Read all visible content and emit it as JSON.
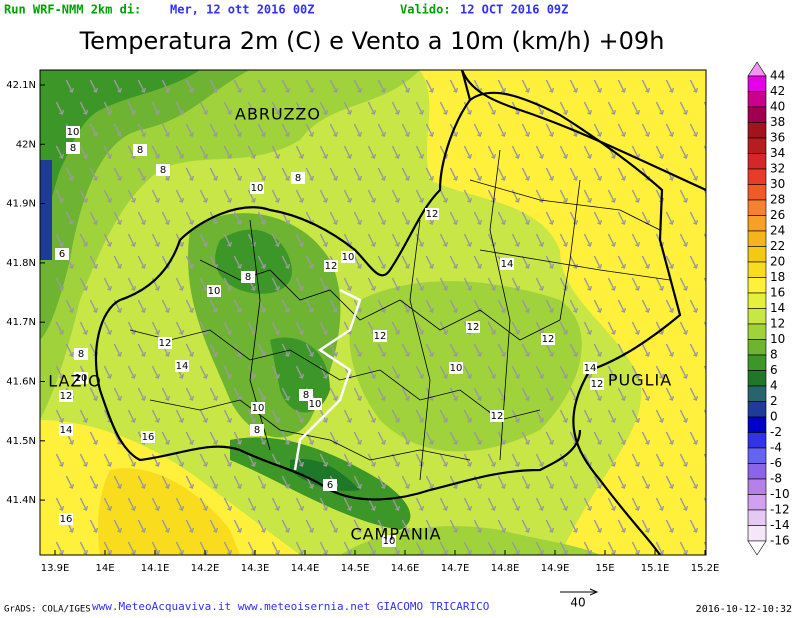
{
  "header": {
    "run_label": "Run WRF-NMM 2km di:",
    "run_date": "Mer, 12 ott 2016 00Z",
    "valid_label": "Valido:",
    "valid_date": "12 OCT 2016 09Z"
  },
  "title": "Temperatura 2m (C) e Vento a 10m (km/h) +09h",
  "lat_ticks": [
    "42.1N",
    "42N",
    "41.9N",
    "41.8N",
    "41.7N",
    "41.6N",
    "41.5N",
    "41.4N"
  ],
  "lon_ticks": [
    "13.9E",
    "14E",
    "14.1E",
    "14.2E",
    "14.3E",
    "14.4E",
    "14.5E",
    "14.6E",
    "14.7E",
    "14.8E",
    "14.9E",
    "15E",
    "15.1E",
    "15.2E"
  ],
  "regions": [
    "ABRUZZO",
    "LAZIO",
    "PUGLIA",
    "CAMPANIA"
  ],
  "contour_labels": [
    10,
    8,
    8,
    8,
    10,
    8,
    6,
    8,
    10,
    10,
    12,
    12,
    14,
    12,
    12,
    12,
    12,
    14,
    8,
    10,
    12,
    8,
    10,
    10,
    10,
    12,
    8,
    16,
    14,
    6,
    14,
    12,
    16,
    10
  ],
  "colorbar": {
    "labels": [
      44,
      42,
      40,
      38,
      36,
      34,
      32,
      30,
      28,
      26,
      24,
      22,
      20,
      18,
      16,
      14,
      12,
      10,
      8,
      6,
      4,
      2,
      0,
      -2,
      -4,
      -6,
      -8,
      -10,
      -12,
      -14,
      -16
    ],
    "colors": [
      "#f096f0",
      "#e600e6",
      "#c8008c",
      "#a00050",
      "#a0141e",
      "#b41e1e",
      "#d22828",
      "#e63c28",
      "#f05a28",
      "#f58232",
      "#f5a028",
      "#f5b41e",
      "#f5c814",
      "#fadc1e",
      "#fff03c",
      "#e6f03c",
      "#c8e646",
      "#a0d23c",
      "#6eb432",
      "#3c9628",
      "#1e7828",
      "#28646e",
      "#1e3c96",
      "#0000c8",
      "#3232e6",
      "#6464f0",
      "#8c64e6",
      "#b482e6",
      "#d2a0f0",
      "#e6c8f5",
      "#f5e6fa",
      "#ffffff"
    ]
  },
  "footer": {
    "credit": "GrADS: COLA/IGES",
    "sites": "www.MeteoAcquaviva.it  www.meteoisernia.net  GIACOMO TRICARICO",
    "vector_scale": "40",
    "timestamp": "2016-10-12-10:32"
  }
}
